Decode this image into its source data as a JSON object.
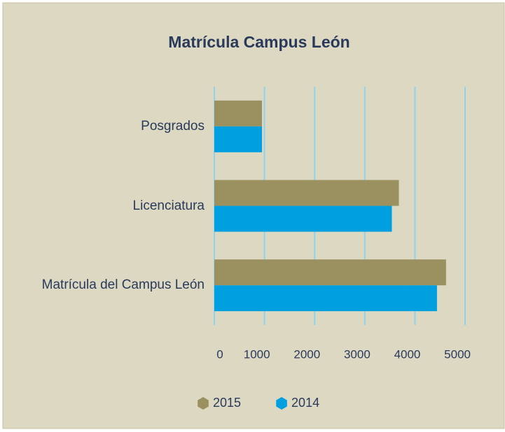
{
  "chart_data": {
    "type": "hbar",
    "title": "Matrícula Campus León",
    "categories": [
      "Posgrados",
      "Licenciatura",
      "Matrícula del Campus León"
    ],
    "series": [
      {
        "name": "2015",
        "color": "#9b9060",
        "values": [
          950,
          3680,
          4620
        ]
      },
      {
        "name": "2014",
        "color": "#009fe0",
        "values": [
          950,
          3540,
          4440
        ]
      }
    ],
    "xlim": [
      0,
      5000
    ],
    "xticks": [
      0,
      1000,
      2000,
      3000,
      4000,
      5000
    ],
    "grid": true,
    "legend": "bottom"
  }
}
